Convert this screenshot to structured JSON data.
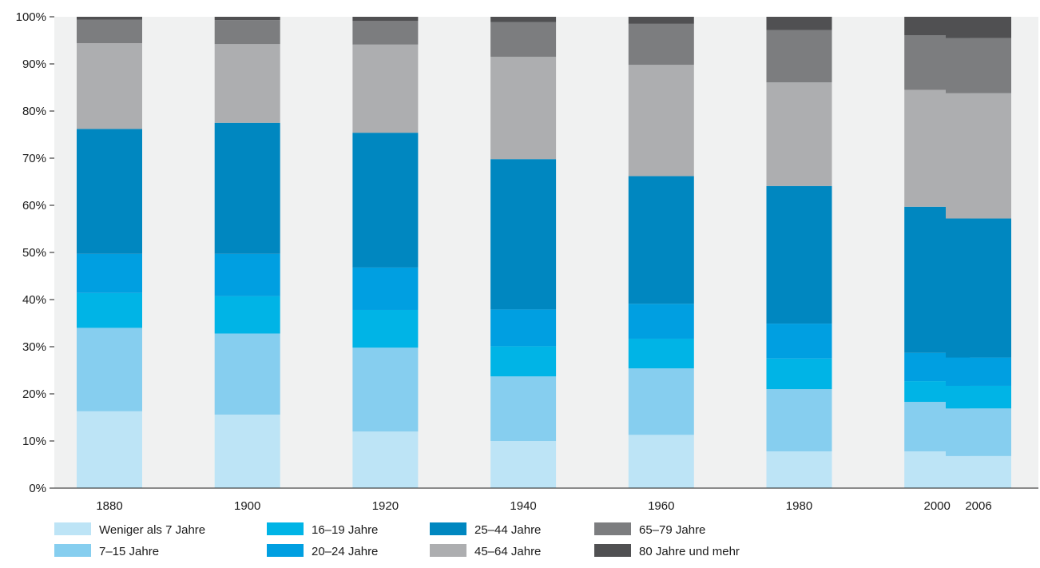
{
  "chart_data": {
    "type": "bar",
    "stacked": true,
    "normalized": true,
    "title": "",
    "xlabel": "",
    "ylabel": "",
    "ylim": [
      0,
      100
    ],
    "yticks": [
      "0%",
      "10%",
      "20%",
      "30%",
      "40%",
      "50%",
      "60%",
      "70%",
      "80%",
      "90%",
      "100%"
    ],
    "grid": false,
    "legend_position": "bottom",
    "categories": [
      "1880",
      "1900",
      "1920",
      "1940",
      "1960",
      "1980",
      "2000",
      "2006"
    ],
    "series": [
      {
        "name": "Weniger als 7 Jahre",
        "color": "#bde4f6",
        "values": [
          16.3,
          15.6,
          12.0,
          10.0,
          11.3,
          7.8,
          7.8,
          6.8
        ]
      },
      {
        "name": "7–15 Jahre",
        "color": "#86ceef",
        "values": [
          17.7,
          17.2,
          17.8,
          13.7,
          14.1,
          13.2,
          10.5,
          10.1
        ]
      },
      {
        "name": "16–19 Jahre",
        "color": "#00b4e6",
        "values": [
          7.4,
          7.9,
          8.0,
          6.4,
          6.3,
          6.5,
          4.4,
          4.8
        ]
      },
      {
        "name": "20–24 Jahre",
        "color": "#009fe1",
        "values": [
          8.3,
          9.0,
          9.0,
          7.8,
          7.4,
          7.4,
          6.0,
          6.0
        ]
      },
      {
        "name": "25–44 Jahre",
        "color": "#0087c0",
        "values": [
          26.5,
          27.8,
          28.6,
          31.9,
          27.1,
          29.2,
          31.0,
          29.5
        ]
      },
      {
        "name": "45–64 Jahre",
        "color": "#adaeb0",
        "values": [
          18.2,
          16.7,
          18.7,
          21.7,
          23.6,
          22.0,
          24.8,
          26.6
        ]
      },
      {
        "name": "65–79 Jahre",
        "color": "#7c7d7f",
        "values": [
          5.0,
          5.1,
          5.0,
          7.4,
          8.7,
          11.1,
          11.6,
          11.7
        ]
      },
      {
        "name": "80 Jahre und mehr",
        "color": "#505052",
        "values": [
          0.6,
          0.7,
          0.9,
          1.1,
          1.5,
          2.8,
          3.9,
          4.5
        ]
      }
    ]
  }
}
